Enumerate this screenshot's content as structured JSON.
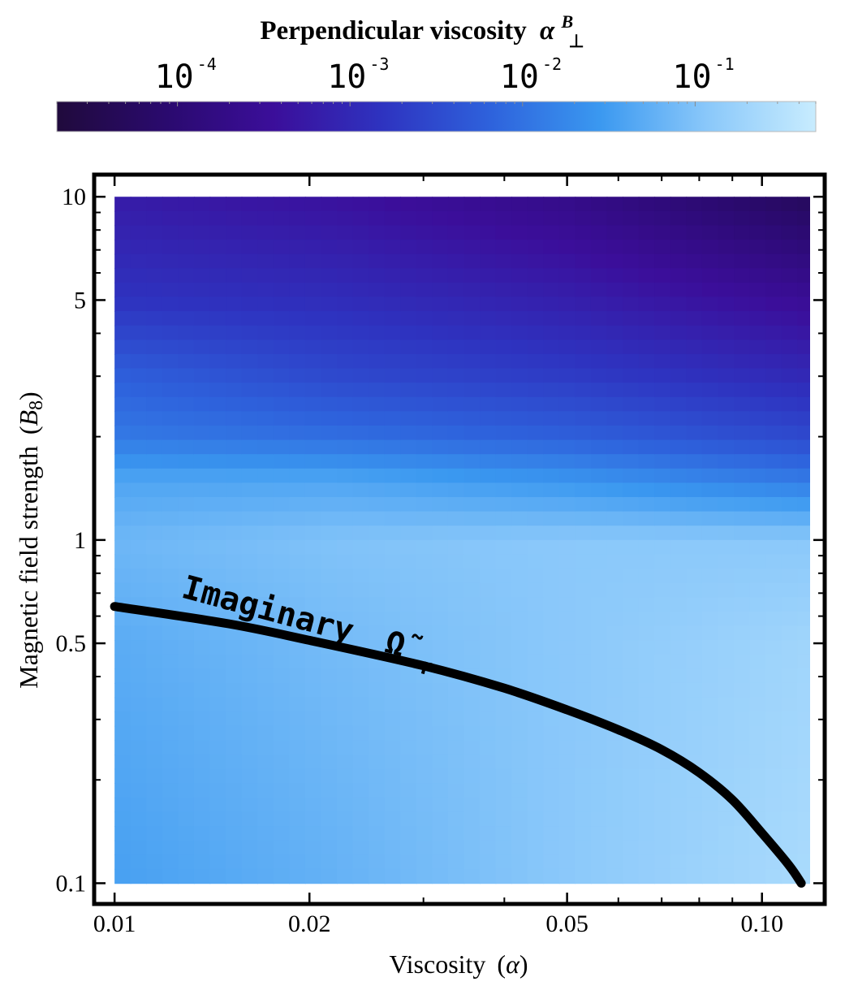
{
  "chart_data": {
    "type": "heatmap",
    "colorbar": {
      "title": "Perpendicular viscosity",
      "title_symbol": "α",
      "title_symbol_sup": "B",
      "title_symbol_sub": "⊥",
      "scale": "log",
      "range": [
        2e-05,
        0.5
      ],
      "ticks": [
        {
          "value": 0.0001,
          "base": "10",
          "exp": "-4"
        },
        {
          "value": 0.001,
          "base": "10",
          "exp": "-3"
        },
        {
          "value": 0.01,
          "base": "10",
          "exp": "-2"
        },
        {
          "value": 0.1,
          "base": "10",
          "exp": "-1"
        }
      ],
      "colors": [
        "#200a3c",
        "#2a0a6e",
        "#3b0e9a",
        "#2e33c0",
        "#2e62dc",
        "#3a98f0",
        "#8ac8fa",
        "#c8ecfe"
      ]
    },
    "x_axis": {
      "label": "Viscosity",
      "label_symbol": "α",
      "scale": "log",
      "range": [
        0.0093,
        0.125
      ],
      "data_range": [
        0.01,
        0.12
      ],
      "ticks": [
        {
          "value": 0.01,
          "label": "0.01"
        },
        {
          "value": 0.02,
          "label": "0.02"
        },
        {
          "value": 0.05,
          "label": "0.05"
        },
        {
          "value": 0.1,
          "label": "0.10"
        }
      ],
      "minor_ticks": [
        0.03,
        0.04,
        0.06,
        0.07,
        0.08,
        0.09
      ]
    },
    "y_axis": {
      "label": "Magnetic field strength",
      "label_symbol": "B",
      "label_symbol_sub": "8",
      "scale": "log",
      "range": [
        0.087,
        11.6
      ],
      "data_range": [
        0.1,
        10
      ],
      "ticks": [
        {
          "value": 0.1,
          "label": "0.1"
        },
        {
          "value": 0.5,
          "label": "0.5"
        },
        {
          "value": 1,
          "label": "1"
        },
        {
          "value": 5,
          "label": "5"
        },
        {
          "value": 10,
          "label": "10"
        }
      ],
      "minor_ticks": [
        0.2,
        0.3,
        0.4,
        0.6,
        0.7,
        0.8,
        0.9,
        2,
        3,
        4,
        6,
        7,
        8,
        9
      ]
    },
    "heatmap_rows": [
      {
        "B": 10,
        "values": [
          0.0006,
          0.0004,
          0.0002,
          5e-05
        ]
      },
      {
        "B": 5,
        "values": [
          0.0015,
          0.0012,
          0.0007,
          0.0003
        ]
      },
      {
        "B": 3,
        "values": [
          0.006,
          0.003,
          0.002,
          0.001
        ]
      },
      {
        "B": 2,
        "values": [
          0.012,
          0.009,
          0.006,
          0.003
        ]
      },
      {
        "B": 1.5,
        "values": [
          0.04,
          0.04,
          0.025,
          0.012
        ]
      },
      {
        "B": 1,
        "values": [
          0.07,
          0.1,
          0.12,
          0.12
        ]
      },
      {
        "B": 0.5,
        "values": [
          0.05,
          0.08,
          0.12,
          0.2
        ]
      },
      {
        "B": 0.1,
        "values": [
          0.035,
          0.06,
          0.12,
          0.25
        ]
      }
    ],
    "heatmap_cols": [
      0.01,
      0.022,
      0.05,
      0.12
    ],
    "curve": {
      "label": "Imaginary",
      "label_symbol": "Ω̃",
      "label_symbol_sub": "r",
      "points": [
        [
          0.01,
          0.64
        ],
        [
          0.015,
          0.57
        ],
        [
          0.02,
          0.51
        ],
        [
          0.03,
          0.43
        ],
        [
          0.04,
          0.37
        ],
        [
          0.05,
          0.32
        ],
        [
          0.06,
          0.28
        ],
        [
          0.07,
          0.245
        ],
        [
          0.08,
          0.21
        ],
        [
          0.09,
          0.175
        ],
        [
          0.1,
          0.14
        ],
        [
          0.11,
          0.113
        ],
        [
          0.115,
          0.1
        ]
      ]
    }
  }
}
